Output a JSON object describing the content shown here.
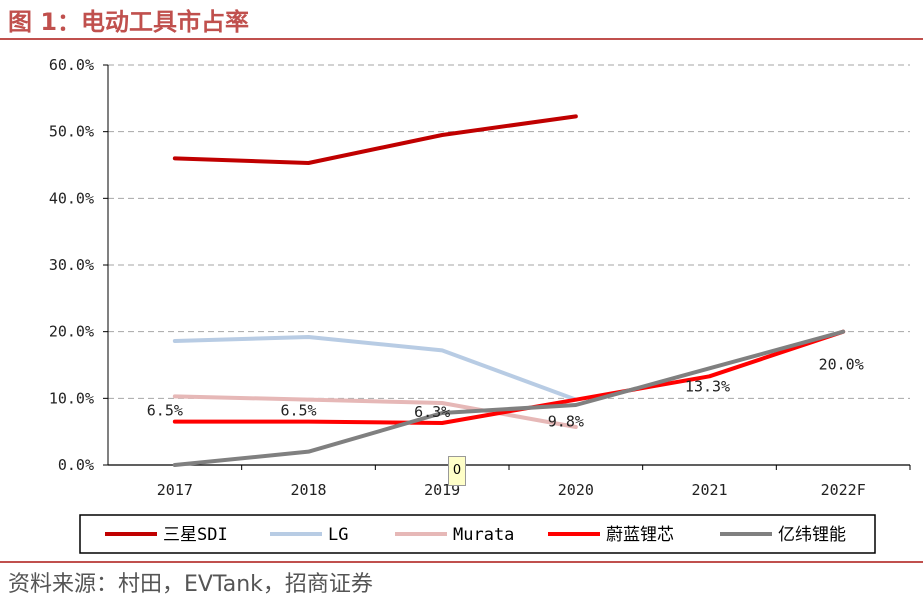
{
  "header": {
    "title": "图 1：电动工具市占率"
  },
  "footer": {
    "source": "资料来源：村田，EVTank，招商证券"
  },
  "tooltip": {
    "text": "0"
  },
  "chart_data": {
    "type": "line",
    "title": "电动工具市占率",
    "categories": [
      "2017",
      "2018",
      "2019",
      "2020",
      "2021",
      "2022F"
    ],
    "y_ticks": [
      "0.0%",
      "10.0%",
      "20.0%",
      "30.0%",
      "40.0%",
      "50.0%",
      "60.0%"
    ],
    "ylim": [
      0,
      60
    ],
    "grid": true,
    "legend_position": "bottom",
    "series": [
      {
        "name": "三星SDI",
        "color": "#c00000",
        "values": [
          46.0,
          45.3,
          49.5,
          52.3,
          null,
          null
        ]
      },
      {
        "name": "LG",
        "color": "#b8cce4",
        "values": [
          18.6,
          19.2,
          17.2,
          9.8,
          null,
          null
        ]
      },
      {
        "name": "Murata",
        "color": "#e6b8b7",
        "values": [
          10.3,
          9.8,
          9.3,
          5.7,
          null,
          null
        ]
      },
      {
        "name": "蔚蓝锂芯",
        "color": "#ff0000",
        "values": [
          6.5,
          6.5,
          6.3,
          9.8,
          13.3,
          20.0
        ]
      },
      {
        "name": "亿纬锂能",
        "color": "#808080",
        "values": [
          0.0,
          2.0,
          7.8,
          9.0,
          14.5,
          20.0
        ]
      }
    ],
    "data_labels": [
      {
        "category": "2017",
        "value": 6.5,
        "text": "6.5%"
      },
      {
        "category": "2018",
        "value": 6.5,
        "text": "6.5%"
      },
      {
        "category": "2019",
        "value": 6.3,
        "text": "6.3%"
      },
      {
        "category": "2020",
        "value": 9.8,
        "text": "9.8%"
      },
      {
        "category": "2021",
        "value": 13.3,
        "text": "13.3%"
      },
      {
        "category": "2022F",
        "value": 20.0,
        "text": "20.0%"
      }
    ]
  }
}
